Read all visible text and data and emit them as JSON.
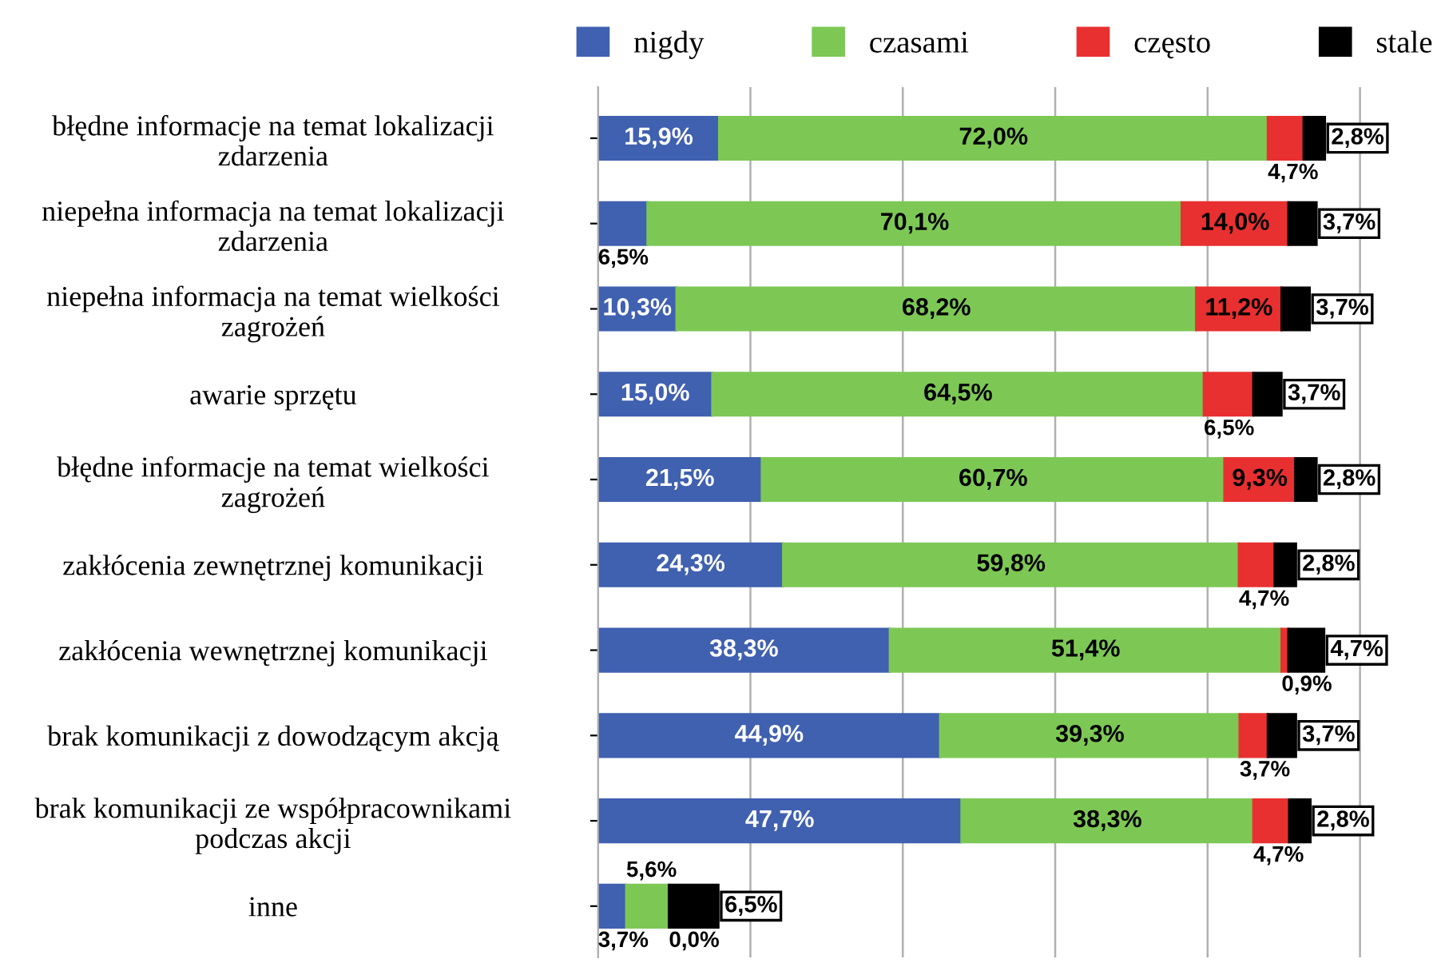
{
  "chart_data": {
    "type": "bar",
    "orientation": "horizontal",
    "stacked": true,
    "grid": "x",
    "legend": "top",
    "tick_labels": "y",
    "categories": [
      "błędne informacje na temat lokalizacji\nzdarzenia",
      "niepełna informacja na temat lokalizacji\nzdarzenia",
      "niepełna informacja na temat wielkości\nzagrożeń",
      "awarie sprzętu",
      "błędne informacje na temat wielkości\nzagrożeń",
      "zakłócenia zewnętrznej komunikacji",
      "zakłócenia wewnętrznej komunikacji",
      "brak komunikacji z dowodzącym akcją",
      "brak komunikacji ze współpracownikami\npodczas akcji",
      "inne"
    ],
    "series": [
      {
        "name": "nigdy",
        "color": "#4060b0",
        "values": [
          15.9,
          6.5,
          10.3,
          15.0,
          21.5,
          24.3,
          38.3,
          44.9,
          47.7,
          3.7
        ],
        "value_labels": [
          "15,9%",
          "6,5%",
          "10,3%",
          "15,0%",
          "21,5%",
          "24,3%",
          "38,3%",
          "44,9%",
          "47,7%",
          "3,7%"
        ]
      },
      {
        "name": "czasami",
        "color": "#7dc855",
        "values": [
          72.0,
          70.1,
          68.2,
          64.5,
          60.7,
          59.8,
          51.4,
          39.3,
          38.3,
          5.6
        ],
        "value_labels": [
          "72,0%",
          "70,1%",
          "68,2%",
          "64,5%",
          "60,7%",
          "59,8%",
          "51,4%",
          "39,3%",
          "38,3%",
          "5,6%"
        ]
      },
      {
        "name": "często",
        "color": "#e83030",
        "values": [
          4.7,
          14.0,
          11.2,
          6.5,
          9.3,
          4.7,
          0.9,
          3.7,
          4.7,
          0.0
        ],
        "value_labels": [
          "4,7%",
          "14,0%",
          "11,2%",
          "6,5%",
          "9,3%",
          "4,7%",
          "0,9%",
          "3,7%",
          "4,7%",
          "0,0%"
        ]
      },
      {
        "name": "stale",
        "color": "#000000",
        "values": [
          2.8,
          3.7,
          3.7,
          3.7,
          2.8,
          2.8,
          4.7,
          3.7,
          2.8,
          6.5
        ],
        "value_labels": [
          "2,8%",
          "3,7%",
          "3,7%",
          "3,7%",
          "2,8%",
          "2,8%",
          "4,7%",
          "3,7%",
          "2,8%",
          "6,5%"
        ]
      }
    ]
  }
}
